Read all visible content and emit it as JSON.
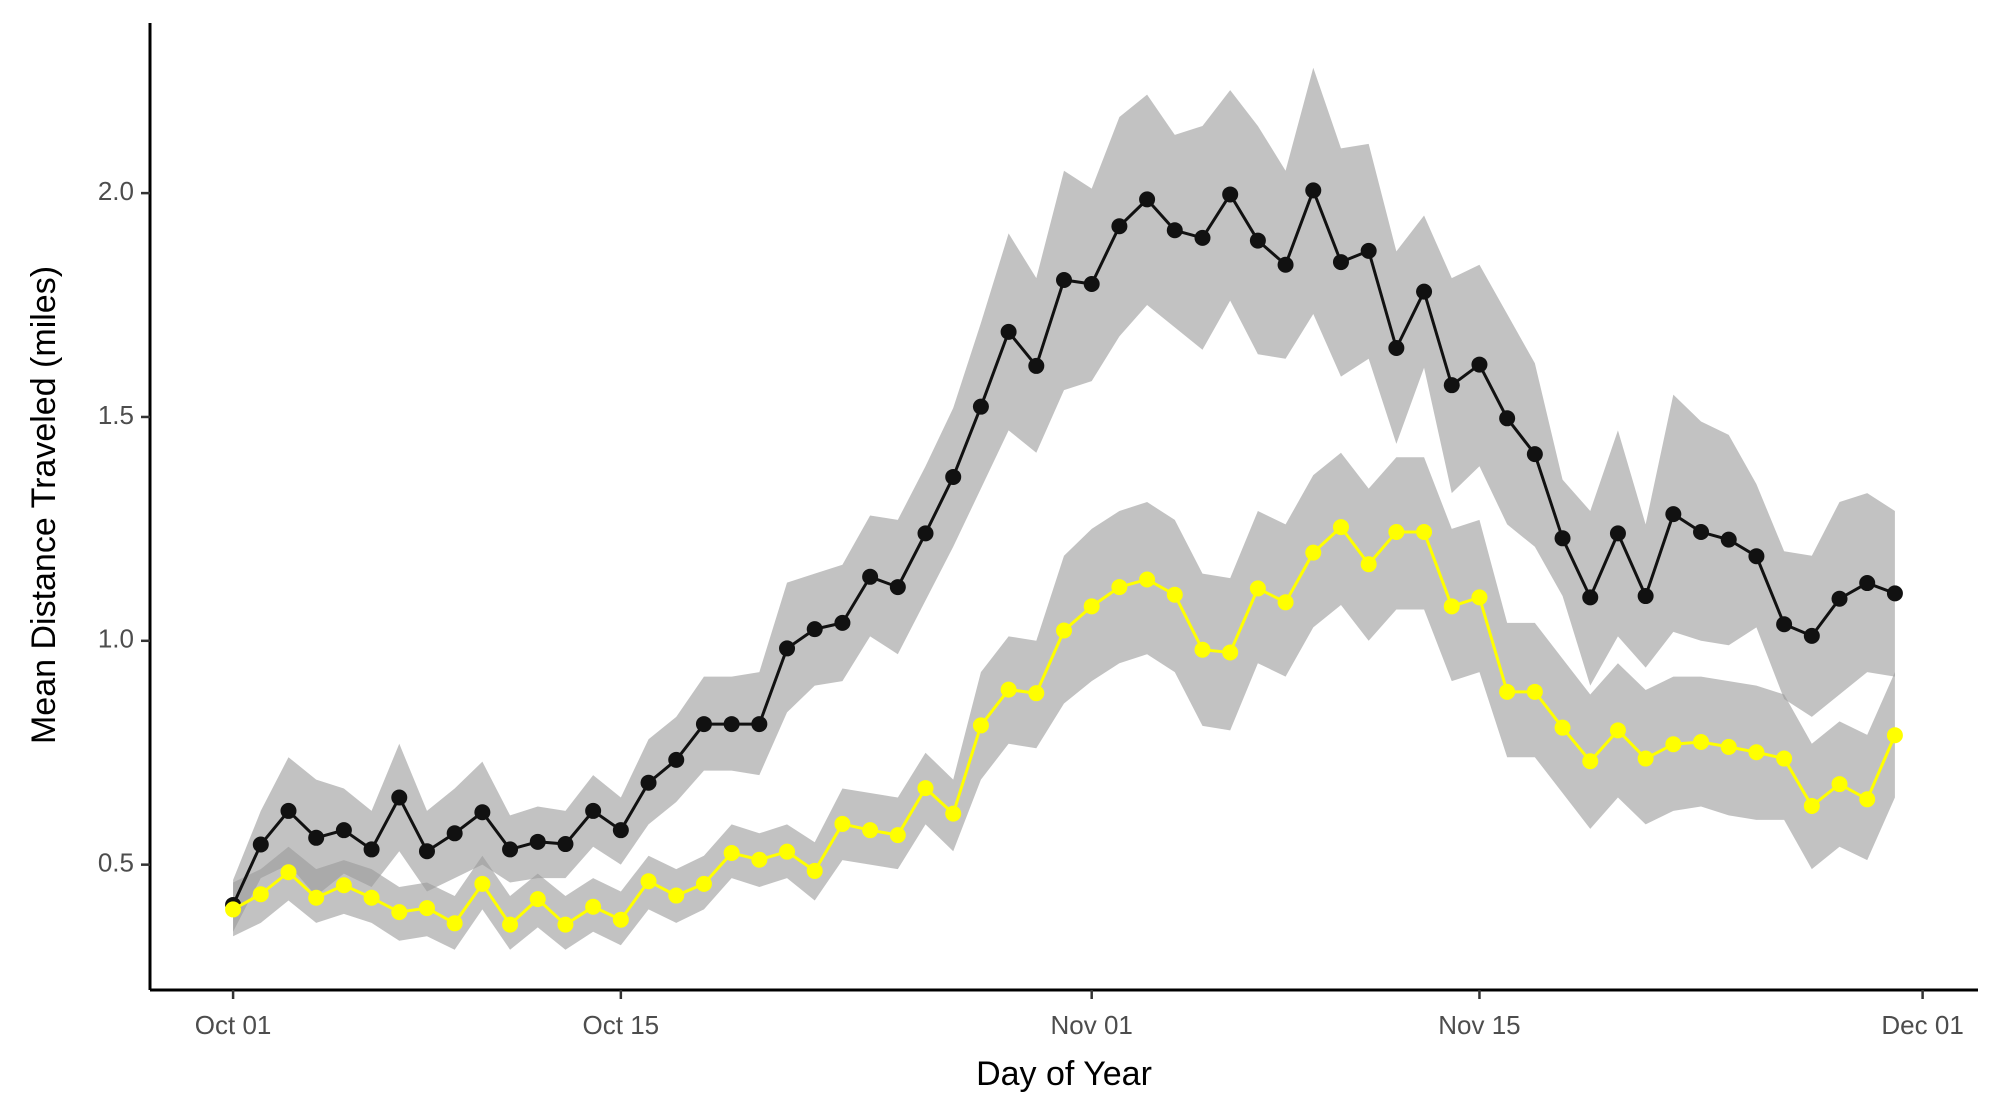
{
  "chart_data": {
    "type": "line",
    "x_label": "Day of Year",
    "y_label": "Mean Distance Traveled (miles)",
    "x": [
      "Oct 01",
      "Oct 02",
      "Oct 03",
      "Oct 04",
      "Oct 05",
      "Oct 06",
      "Oct 07",
      "Oct 08",
      "Oct 09",
      "Oct 10",
      "Oct 11",
      "Oct 12",
      "Oct 13",
      "Oct 14",
      "Oct 15",
      "Oct 16",
      "Oct 17",
      "Oct 18",
      "Oct 19",
      "Oct 20",
      "Oct 21",
      "Oct 22",
      "Oct 23",
      "Oct 24",
      "Oct 25",
      "Oct 26",
      "Oct 27",
      "Oct 28",
      "Oct 29",
      "Oct 30",
      "Oct 31",
      "Nov 01",
      "Nov 02",
      "Nov 03",
      "Nov 04",
      "Nov 05",
      "Nov 06",
      "Nov 07",
      "Nov 08",
      "Nov 09",
      "Nov 10",
      "Nov 11",
      "Nov 12",
      "Nov 13",
      "Nov 14",
      "Nov 15",
      "Nov 16",
      "Nov 17",
      "Nov 18",
      "Nov 19",
      "Nov 20",
      "Nov 21",
      "Nov 22",
      "Nov 23",
      "Nov 24",
      "Nov 25",
      "Nov 26",
      "Nov 27",
      "Nov 28",
      "Nov 29",
      "Nov 30"
    ],
    "xlim": [
      "Sep 28",
      "Dec 03"
    ],
    "xticks": [
      "Oct 01",
      "Oct 15",
      "Nov 01",
      "Nov 15",
      "Dec 01"
    ],
    "ylim": [
      0.22,
      2.38
    ],
    "yticks": [
      0.5,
      {
        "value": 1.0,
        "label": "1.0"
      },
      1.5,
      {
        "value": 2.0,
        "label": "2.0"
      }
    ],
    "band_color": "#999999",
    "series": [
      {
        "color": "#111111",
        "values": [
          0.41,
          0.545,
          0.62,
          0.56,
          0.577,
          0.534,
          0.65,
          0.53,
          0.57,
          0.617,
          0.534,
          0.551,
          0.546,
          0.62,
          0.577,
          0.683,
          0.734,
          0.814,
          0.814,
          0.814,
          0.983,
          1.026,
          1.04,
          1.143,
          1.12,
          1.24,
          1.366,
          1.523,
          1.69,
          1.614,
          1.806,
          1.797,
          1.926,
          1.986,
          1.917,
          1.9,
          1.997,
          1.894,
          1.84,
          2.006,
          1.846,
          1.871,
          1.654,
          1.78,
          1.571,
          1.617,
          1.497,
          1.417,
          1.229,
          1.097,
          1.24,
          1.1,
          1.283,
          1.243,
          1.226,
          1.189,
          1.037,
          1.011,
          1.094,
          1.129,
          1.106
        ],
        "upper": [
          0.466,
          0.62,
          0.74,
          0.69,
          0.67,
          0.62,
          0.77,
          0.62,
          0.67,
          0.73,
          0.61,
          0.63,
          0.62,
          0.7,
          0.65,
          0.78,
          0.83,
          0.92,
          0.92,
          0.93,
          1.13,
          1.15,
          1.17,
          1.28,
          1.27,
          1.39,
          1.52,
          1.71,
          1.91,
          1.81,
          2.05,
          2.01,
          2.17,
          2.22,
          2.13,
          2.15,
          2.23,
          2.15,
          2.05,
          2.28,
          2.1,
          2.11,
          1.87,
          1.95,
          1.81,
          1.84,
          1.73,
          1.62,
          1.36,
          1.29,
          1.47,
          1.26,
          1.55,
          1.49,
          1.46,
          1.35,
          1.2,
          1.19,
          1.31,
          1.33,
          1.29
        ],
        "lower": [
          0.35,
          0.47,
          0.5,
          0.43,
          0.48,
          0.45,
          0.53,
          0.44,
          0.47,
          0.5,
          0.46,
          0.47,
          0.47,
          0.54,
          0.5,
          0.59,
          0.64,
          0.71,
          0.71,
          0.7,
          0.84,
          0.9,
          0.91,
          1.01,
          0.97,
          1.09,
          1.21,
          1.34,
          1.47,
          1.42,
          1.56,
          1.58,
          1.68,
          1.75,
          1.7,
          1.65,
          1.76,
          1.64,
          1.63,
          1.73,
          1.59,
          1.63,
          1.44,
          1.61,
          1.33,
          1.39,
          1.26,
          1.21,
          1.1,
          0.9,
          1.01,
          0.94,
          1.02,
          1.0,
          0.99,
          1.03,
          0.87,
          0.83,
          0.88,
          0.93,
          0.92
        ]
      },
      {
        "color": "#ffff00",
        "values": [
          0.4,
          0.434,
          0.483,
          0.426,
          0.454,
          0.426,
          0.394,
          0.403,
          0.369,
          0.457,
          0.366,
          0.423,
          0.366,
          0.406,
          0.377,
          0.463,
          0.431,
          0.457,
          0.526,
          0.511,
          0.529,
          0.486,
          0.591,
          0.577,
          0.566,
          0.671,
          0.614,
          0.811,
          0.891,
          0.883,
          1.023,
          1.077,
          1.12,
          1.137,
          1.103,
          0.98,
          0.974,
          1.117,
          1.086,
          1.197,
          1.254,
          1.171,
          1.243,
          1.243,
          1.077,
          1.097,
          0.886,
          0.886,
          0.806,
          0.731,
          0.8,
          0.737,
          0.769,
          0.774,
          0.763,
          0.751,
          0.737,
          0.631,
          0.68,
          0.646,
          0.789
        ],
        "upper": [
          0.46,
          0.49,
          0.54,
          0.49,
          0.51,
          0.49,
          0.45,
          0.46,
          0.43,
          0.52,
          0.43,
          0.48,
          0.43,
          0.47,
          0.44,
          0.52,
          0.49,
          0.52,
          0.59,
          0.57,
          0.59,
          0.55,
          0.67,
          0.66,
          0.65,
          0.75,
          0.69,
          0.93,
          1.01,
          1.0,
          1.19,
          1.25,
          1.29,
          1.31,
          1.27,
          1.15,
          1.14,
          1.29,
          1.26,
          1.37,
          1.42,
          1.34,
          1.41,
          1.41,
          1.25,
          1.27,
          1.04,
          1.04,
          0.96,
          0.88,
          0.95,
          0.89,
          0.92,
          0.92,
          0.91,
          0.9,
          0.88,
          0.77,
          0.82,
          0.79,
          0.93
        ],
        "lower": [
          0.34,
          0.37,
          0.42,
          0.37,
          0.39,
          0.37,
          0.33,
          0.34,
          0.31,
          0.4,
          0.31,
          0.36,
          0.31,
          0.35,
          0.32,
          0.4,
          0.37,
          0.4,
          0.47,
          0.45,
          0.47,
          0.42,
          0.51,
          0.5,
          0.49,
          0.59,
          0.53,
          0.69,
          0.77,
          0.76,
          0.86,
          0.91,
          0.95,
          0.97,
          0.93,
          0.81,
          0.8,
          0.95,
          0.92,
          1.03,
          1.08,
          1.0,
          1.07,
          1.07,
          0.91,
          0.93,
          0.74,
          0.74,
          0.66,
          0.58,
          0.65,
          0.59,
          0.62,
          0.63,
          0.61,
          0.6,
          0.6,
          0.49,
          0.54,
          0.51,
          0.65
        ]
      }
    ]
  }
}
